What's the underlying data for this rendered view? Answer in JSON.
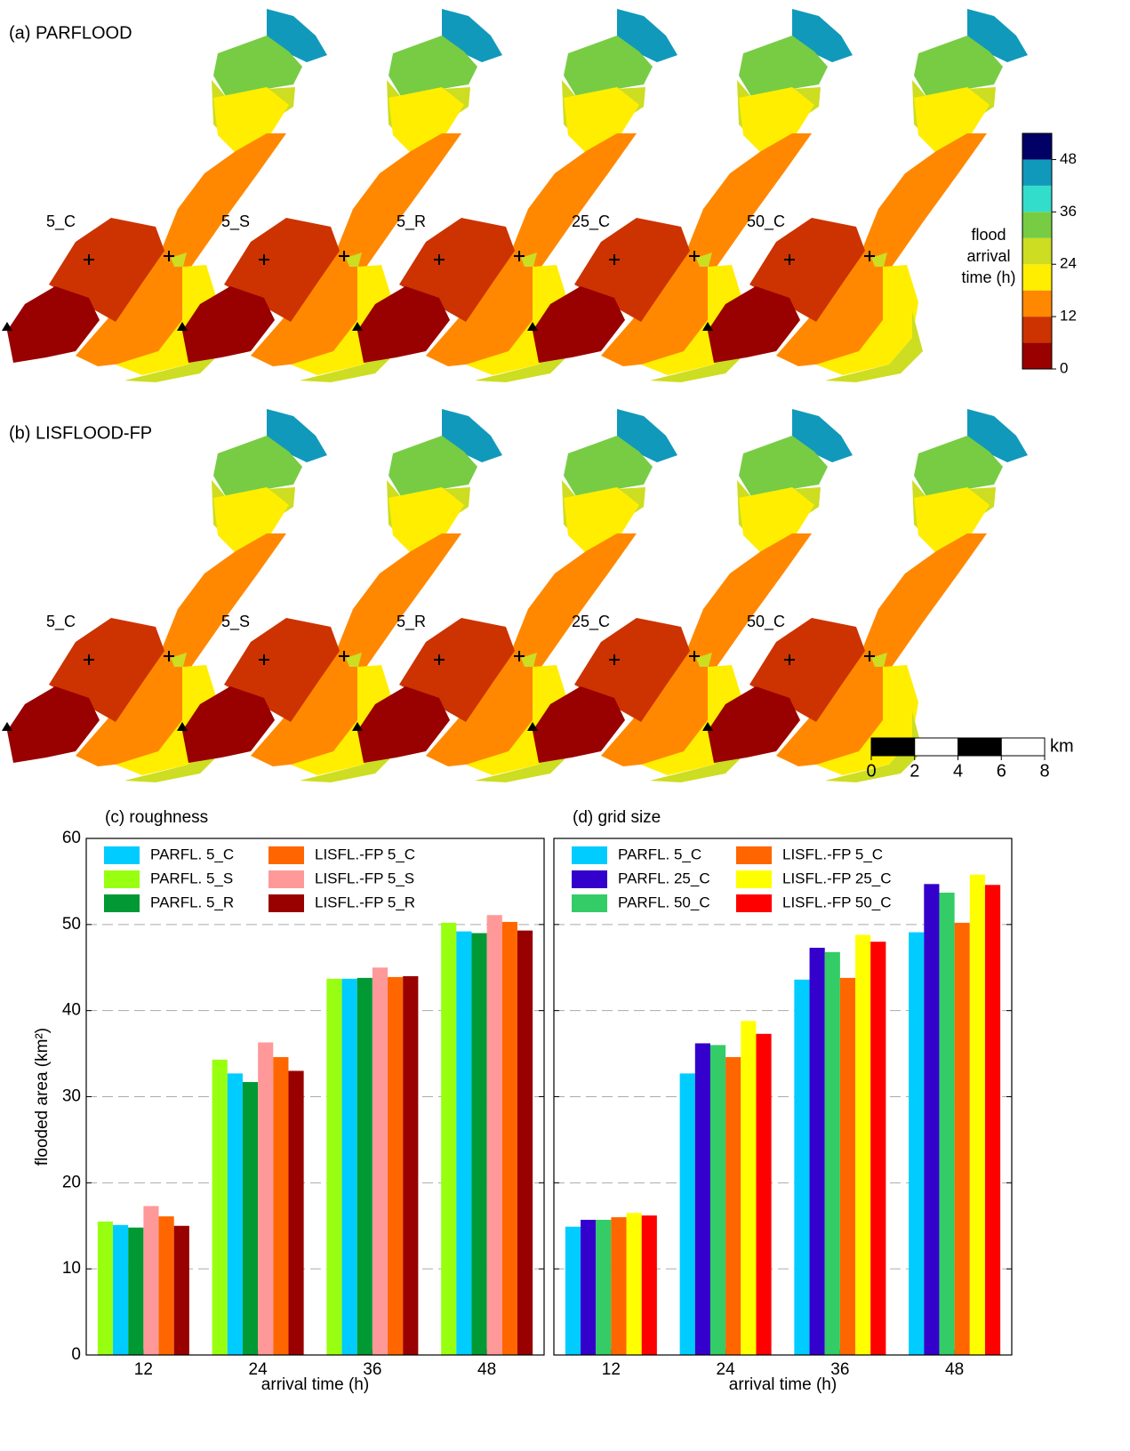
{
  "panels": {
    "a": "(a) PARFLOOD",
    "b": "(b) LISFLOOD-FP"
  },
  "map_labels": [
    "5_C",
    "5_S",
    "5_R",
    "25_C",
    "50_C"
  ],
  "colorbar": {
    "label": [
      "flood",
      "arrival",
      "time (h)"
    ],
    "lim": [
      0,
      54
    ],
    "ticks": [
      0,
      12,
      24,
      36,
      48
    ],
    "colors": [
      "#990000",
      "#cc3300",
      "#ff8800",
      "#ffee00",
      "#ccdd22",
      "#77cc44",
      "#33ddcc",
      "#1199bb",
      "#000066"
    ]
  },
  "scalebar": {
    "unit": "km",
    "lim": [
      0,
      8
    ],
    "ticks": [
      0,
      2,
      4,
      6,
      8
    ]
  },
  "chart_data": [
    {
      "type": "bar",
      "title": "(c) roughness",
      "xlabel": "arrival time (h)",
      "ylabel": "flooded area (km²)",
      "categories": [
        12,
        24,
        36,
        48
      ],
      "ylim": [
        0,
        60
      ],
      "yticks": [
        0,
        10,
        20,
        30,
        40,
        50,
        60
      ],
      "grid": true,
      "ytick_labels": true,
      "series": [
        {
          "name": "PARFL. 5_S",
          "color": "#99ff11",
          "values": [
            15.5,
            34.3,
            43.7,
            50.2
          ]
        },
        {
          "name": "PARFL. 5_C",
          "color": "#00ccff",
          "values": [
            15.1,
            32.7,
            43.7,
            49.2
          ]
        },
        {
          "name": "PARFL. 5_R",
          "color": "#009933",
          "values": [
            14.8,
            31.7,
            43.8,
            49.0
          ]
        },
        {
          "name": "LISFL.-FP 5_S",
          "color": "#ff9999",
          "values": [
            17.3,
            36.3,
            45.0,
            51.1
          ]
        },
        {
          "name": "LISFL.-FP 5_C",
          "color": "#ff6600",
          "values": [
            16.1,
            34.6,
            43.9,
            50.3
          ]
        },
        {
          "name": "LISFL.-FP 5_R",
          "color": "#990000",
          "values": [
            15.0,
            33.0,
            44.0,
            49.3
          ]
        }
      ]
    },
    {
      "type": "bar",
      "title": "(d) grid size",
      "xlabel": "arrival time (h)",
      "categories": [
        12,
        24,
        36,
        48
      ],
      "ylim": [
        0,
        60
      ],
      "yticks": [
        0,
        10,
        20,
        30,
        40,
        50,
        60
      ],
      "grid": true,
      "ytick_labels": false,
      "series": [
        {
          "name": "PARFL. 5_C",
          "color": "#00ccff",
          "values": [
            14.9,
            32.7,
            43.6,
            49.1
          ]
        },
        {
          "name": "PARFL. 25_C",
          "color": "#3300cc",
          "values": [
            15.7,
            36.2,
            47.3,
            54.7
          ]
        },
        {
          "name": "PARFL. 50_C",
          "color": "#33cc66",
          "values": [
            15.7,
            36.0,
            46.8,
            53.7
          ]
        },
        {
          "name": "LISFL.-FP 5_C",
          "color": "#ff6600",
          "values": [
            16.0,
            34.6,
            43.8,
            50.2
          ]
        },
        {
          "name": "LISFL.-FP 25_C",
          "color": "#ffff00",
          "values": [
            16.5,
            38.8,
            48.8,
            55.8
          ]
        },
        {
          "name": "LISFL.-FP 50_C",
          "color": "#ff0000",
          "values": [
            16.2,
            37.3,
            48.0,
            54.6
          ]
        }
      ]
    }
  ]
}
